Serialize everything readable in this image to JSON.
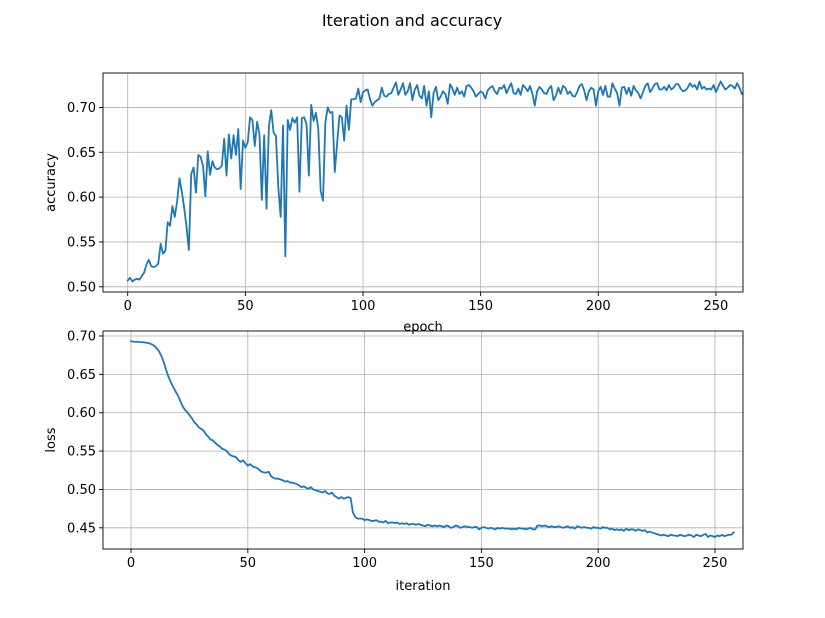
{
  "figure": {
    "title": "Iteration and accuracy"
  },
  "colors": {
    "line": "#1f77b4",
    "grid": "#b0b0b0",
    "frame": "#000000"
  },
  "chart_data": [
    {
      "type": "line",
      "title": "",
      "xlabel": "epoch",
      "ylabel": "accuracy",
      "xlim": [
        -10.5,
        261.5
      ],
      "ylim": [
        0.4942,
        0.7384
      ],
      "xticks": [
        0,
        50,
        100,
        150,
        200,
        250
      ],
      "yticks": [
        0.5,
        0.55,
        0.6,
        0.65,
        0.7
      ],
      "xtick_labels": [
        "0",
        "50",
        "100",
        "150",
        "200",
        "250"
      ],
      "ytick_labels": [
        "0.50",
        "0.55",
        "0.60",
        "0.65",
        "0.70"
      ],
      "grid": true,
      "series": [
        {
          "x_start": 0,
          "x_step": 1,
          "values": [
            0.507,
            0.51,
            0.506,
            0.508,
            0.509,
            0.508,
            0.512,
            0.516,
            0.525,
            0.53,
            0.523,
            0.522,
            0.523,
            0.526,
            0.548,
            0.537,
            0.54,
            0.572,
            0.568,
            0.59,
            0.578,
            0.595,
            0.621,
            0.606,
            0.588,
            0.567,
            0.541,
            0.626,
            0.633,
            0.605,
            0.647,
            0.645,
            0.635,
            0.601,
            0.651,
            0.625,
            0.64,
            0.633,
            0.631,
            0.632,
            0.635,
            0.665,
            0.624,
            0.67,
            0.643,
            0.669,
            0.647,
            0.676,
            0.609,
            0.663,
            0.655,
            0.661,
            0.689,
            0.686,
            0.657,
            0.684,
            0.67,
            0.597,
            0.669,
            0.587,
            0.679,
            0.697,
            0.672,
            0.668,
            0.611,
            0.578,
            0.68,
            0.534,
            0.686,
            0.675,
            0.688,
            0.683,
            0.689,
            0.606,
            0.688,
            0.689,
            0.681,
            0.624,
            0.703,
            0.685,
            0.694,
            0.676,
            0.607,
            0.596,
            0.683,
            0.7,
            0.694,
            0.695,
            0.628,
            0.66,
            0.691,
            0.689,
            0.663,
            0.702,
            0.675,
            0.709,
            0.709,
            0.71,
            0.721,
            0.706,
            0.717,
            0.719,
            0.72,
            0.709,
            0.702,
            0.706,
            0.708,
            0.71,
            0.722,
            0.713,
            0.712,
            0.715,
            0.716,
            0.722,
            0.728,
            0.714,
            0.72,
            0.727,
            0.714,
            0.718,
            0.727,
            0.708,
            0.72,
            0.725,
            0.713,
            0.71,
            0.724,
            0.702,
            0.718,
            0.689,
            0.716,
            0.723,
            0.708,
            0.712,
            0.718,
            0.715,
            0.704,
            0.726,
            0.721,
            0.714,
            0.722,
            0.715,
            0.718,
            0.712,
            0.724,
            0.725,
            0.722,
            0.718,
            0.712,
            0.715,
            0.718,
            0.716,
            0.71,
            0.719,
            0.722,
            0.724,
            0.718,
            0.715,
            0.722,
            0.721,
            0.725,
            0.716,
            0.722,
            0.727,
            0.716,
            0.715,
            0.721,
            0.714,
            0.725,
            0.722,
            0.718,
            0.724,
            0.715,
            0.702,
            0.718,
            0.723,
            0.72,
            0.716,
            0.715,
            0.721,
            0.724,
            0.708,
            0.713,
            0.722,
            0.715,
            0.724,
            0.722,
            0.715,
            0.718,
            0.713,
            0.712,
            0.717,
            0.724,
            0.726,
            0.719,
            0.708,
            0.718,
            0.722,
            0.72,
            0.702,
            0.718,
            0.723,
            0.714,
            0.724,
            0.712,
            0.712,
            0.727,
            0.721,
            0.716,
            0.702,
            0.722,
            0.723,
            0.715,
            0.722,
            0.713,
            0.724,
            0.719,
            0.716,
            0.71,
            0.717,
            0.724,
            0.727,
            0.717,
            0.721,
            0.726,
            0.727,
            0.72,
            0.72,
            0.723,
            0.719,
            0.725,
            0.72,
            0.722,
            0.726,
            0.726,
            0.721,
            0.718,
            0.719,
            0.722,
            0.727,
            0.723,
            0.725,
            0.72,
            0.729,
            0.721,
            0.723,
            0.72,
            0.721,
            0.72,
            0.725,
            0.717,
            0.723,
            0.729,
            0.724,
            0.72,
            0.722,
            0.725,
            0.724,
            0.721,
            0.727,
            0.722,
            0.715
          ]
        }
      ]
    },
    {
      "type": "line",
      "title": "",
      "xlabel": "iteration",
      "ylabel": "loss",
      "xlim": [
        -12.0,
        262.0
      ],
      "ylim": [
        0.4224,
        0.7065
      ],
      "xticks": [
        0,
        50,
        100,
        150,
        200,
        250
      ],
      "yticks": [
        0.45,
        0.5,
        0.55,
        0.6,
        0.65,
        0.7
      ],
      "xtick_labels": [
        "0",
        "50",
        "100",
        "150",
        "200",
        "250"
      ],
      "ytick_labels": [
        "0.45",
        "0.50",
        "0.55",
        "0.60",
        "0.65",
        "0.70"
      ],
      "grid": true,
      "series": [
        {
          "x_start": 0,
          "x_step": 1,
          "values": [
            0.693,
            0.6927,
            0.6925,
            0.6923,
            0.692,
            0.6918,
            0.6915,
            0.691,
            0.6902,
            0.689,
            0.687,
            0.684,
            0.68,
            0.674,
            0.666,
            0.656,
            0.647,
            0.64,
            0.634,
            0.628,
            0.623,
            0.616,
            0.609,
            0.604,
            0.601,
            0.597,
            0.593,
            0.588,
            0.585,
            0.581,
            0.579,
            0.577,
            0.572,
            0.569,
            0.565,
            0.564,
            0.561,
            0.558,
            0.556,
            0.553,
            0.552,
            0.55,
            0.546,
            0.544,
            0.543,
            0.542,
            0.538,
            0.536,
            0.538,
            0.534,
            0.531,
            0.533,
            0.53,
            0.529,
            0.528,
            0.525,
            0.523,
            0.522,
            0.522,
            0.523,
            0.517,
            0.515,
            0.514,
            0.514,
            0.513,
            0.512,
            0.51,
            0.511,
            0.509,
            0.509,
            0.508,
            0.507,
            0.505,
            0.503,
            0.504,
            0.502,
            0.501,
            0.503,
            0.5,
            0.499,
            0.498,
            0.497,
            0.496,
            0.498,
            0.495,
            0.494,
            0.496,
            0.492,
            0.49,
            0.488,
            0.49,
            0.488,
            0.489,
            0.49,
            0.489,
            0.47,
            0.464,
            0.462,
            0.462,
            0.462,
            0.46,
            0.461,
            0.46,
            0.459,
            0.459,
            0.46,
            0.458,
            0.458,
            0.457,
            0.459,
            0.456,
            0.457,
            0.457,
            0.456,
            0.457,
            0.455,
            0.456,
            0.455,
            0.456,
            0.454,
            0.455,
            0.455,
            0.454,
            0.455,
            0.454,
            0.453,
            0.452,
            0.454,
            0.453,
            0.452,
            0.453,
            0.452,
            0.453,
            0.452,
            0.451,
            0.453,
            0.452,
            0.45,
            0.451,
            0.453,
            0.452,
            0.45,
            0.451,
            0.452,
            0.451,
            0.451,
            0.45,
            0.451,
            0.451,
            0.448,
            0.45,
            0.451,
            0.45,
            0.449,
            0.45,
            0.449,
            0.448,
            0.45,
            0.449,
            0.45,
            0.449,
            0.449,
            0.449,
            0.448,
            0.449,
            0.448,
            0.45,
            0.449,
            0.449,
            0.448,
            0.449,
            0.45,
            0.448,
            0.448,
            0.453,
            0.453,
            0.452,
            0.453,
            0.452,
            0.451,
            0.452,
            0.451,
            0.451,
            0.452,
            0.451,
            0.45,
            0.451,
            0.452,
            0.45,
            0.451,
            0.449,
            0.452,
            0.451,
            0.45,
            0.451,
            0.45,
            0.45,
            0.449,
            0.451,
            0.45,
            0.45,
            0.449,
            0.451,
            0.45,
            0.45,
            0.448,
            0.449,
            0.447,
            0.448,
            0.447,
            0.448,
            0.446,
            0.449,
            0.447,
            0.448,
            0.448,
            0.446,
            0.448,
            0.447,
            0.446,
            0.447,
            0.444,
            0.445,
            0.444,
            0.443,
            0.442,
            0.441,
            0.44,
            0.441,
            0.44,
            0.439,
            0.441,
            0.44,
            0.44,
            0.439,
            0.441,
            0.44,
            0.439,
            0.44,
            0.441,
            0.44,
            0.438,
            0.441,
            0.44,
            0.439,
            0.441,
            0.442,
            0.438,
            0.44,
            0.439,
            0.438,
            0.44,
            0.439,
            0.441,
            0.439,
            0.44,
            0.441,
            0.441,
            0.444
          ]
        }
      ]
    }
  ]
}
